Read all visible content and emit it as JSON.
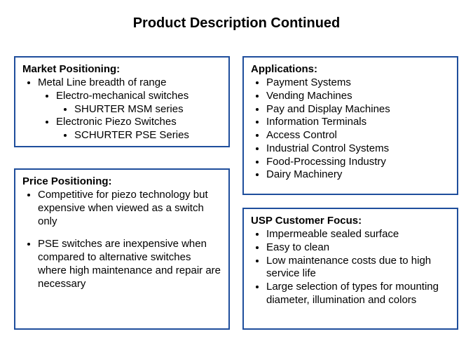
{
  "title": "Product Description Continued",
  "colors": {
    "border": "#1f4e9c",
    "text": "#000000",
    "bg": "#ffffff"
  },
  "market": {
    "heading": "Market Positioning:",
    "item1": "Metal Line breadth of range",
    "item1a": "Electro-mechanical switches",
    "item1a1": "SHURTER MSM series",
    "item1b": "Electronic Piezo Switches",
    "item1b1": "SCHURTER PSE Series"
  },
  "price": {
    "heading": "Price Positioning:",
    "item1": "Competitive for piezo technology but expensive when viewed as a switch only",
    "item2": "PSE switches are inexpensive when compared to alternative switches where high maintenance and repair are necessary"
  },
  "apps": {
    "heading": "Applications:",
    "item1": "Payment Systems",
    "item2": "Vending Machines",
    "item3": "Pay and Display Machines",
    "item4": "Information Terminals",
    "item5": "Access Control",
    "item6": "Industrial Control Systems",
    "item7": "Food-Processing Industry",
    "item8": "Dairy Machinery"
  },
  "usp": {
    "heading": "USP Customer Focus:",
    "item1": "Impermeable sealed surface",
    "item2": "Easy to clean",
    "item3": "Low maintenance costs due to high service life",
    "item4": "Large selection of types for mounting diameter, illumination and colors"
  }
}
